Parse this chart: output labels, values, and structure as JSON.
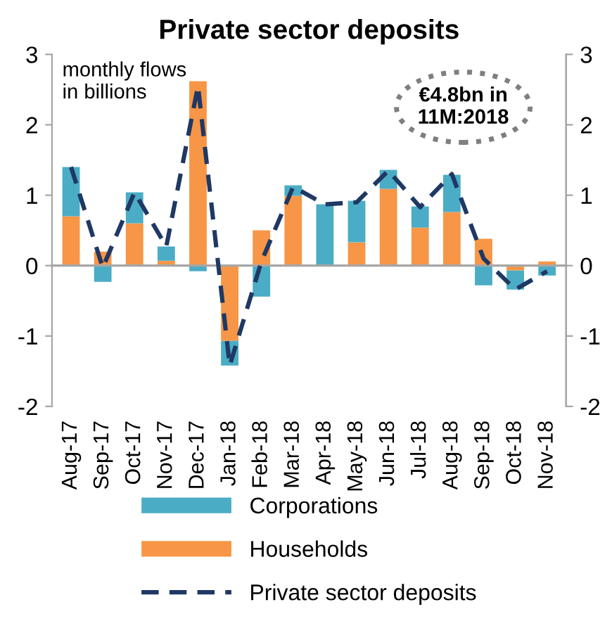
{
  "chart_data": {
    "type": "bar",
    "title": "Private sector deposits",
    "stacked": true,
    "categories": [
      "Aug-17",
      "Sep-17",
      "Oct-17",
      "Nov-17",
      "Dec-17",
      "Jan-18",
      "Feb-18",
      "Mar-18",
      "Apr-18",
      "May-18",
      "Jun-18",
      "Jul-18",
      "Aug-18",
      "Sep-18",
      "Oct-18",
      "Nov-18"
    ],
    "series": [
      {
        "name": "Households",
        "color": "#f79646",
        "values": [
          0.7,
          0.2,
          0.6,
          0.07,
          2.62,
          -1.07,
          0.5,
          0.99,
          0,
          0.33,
          1.09,
          0.54,
          0.76,
          0.38,
          -0.07,
          0.06
        ]
      },
      {
        "name": "Corporations",
        "color": "#4bacc6",
        "values": [
          0.7,
          -0.23,
          0.44,
          0.2,
          -0.08,
          -0.35,
          -0.44,
          0.15,
          0.87,
          0.59,
          0.27,
          0.3,
          0.53,
          -0.28,
          -0.27,
          -0.14
        ]
      },
      {
        "name": "Private sector deposits",
        "type": "line",
        "color": "#1f3864",
        "line_style": "dashed",
        "values": [
          1.4,
          -0.03,
          1.04,
          0.27,
          2.55,
          -1.42,
          0.06,
          1.12,
          0.87,
          0.9,
          1.35,
          0.83,
          1.3,
          0.1,
          -0.34,
          -0.08
        ]
      }
    ],
    "ylim": [
      -2,
      3
    ],
    "yticks": [
      -2,
      -1,
      0,
      1,
      2,
      3
    ],
    "y2lim": [
      -2,
      3
    ],
    "y2ticks": [
      -2,
      -1,
      0,
      1,
      2,
      3
    ],
    "legend": "bottom",
    "annotations": [
      "monthly flows\nin billions",
      "€4.8bn in\n11M:2018"
    ]
  }
}
